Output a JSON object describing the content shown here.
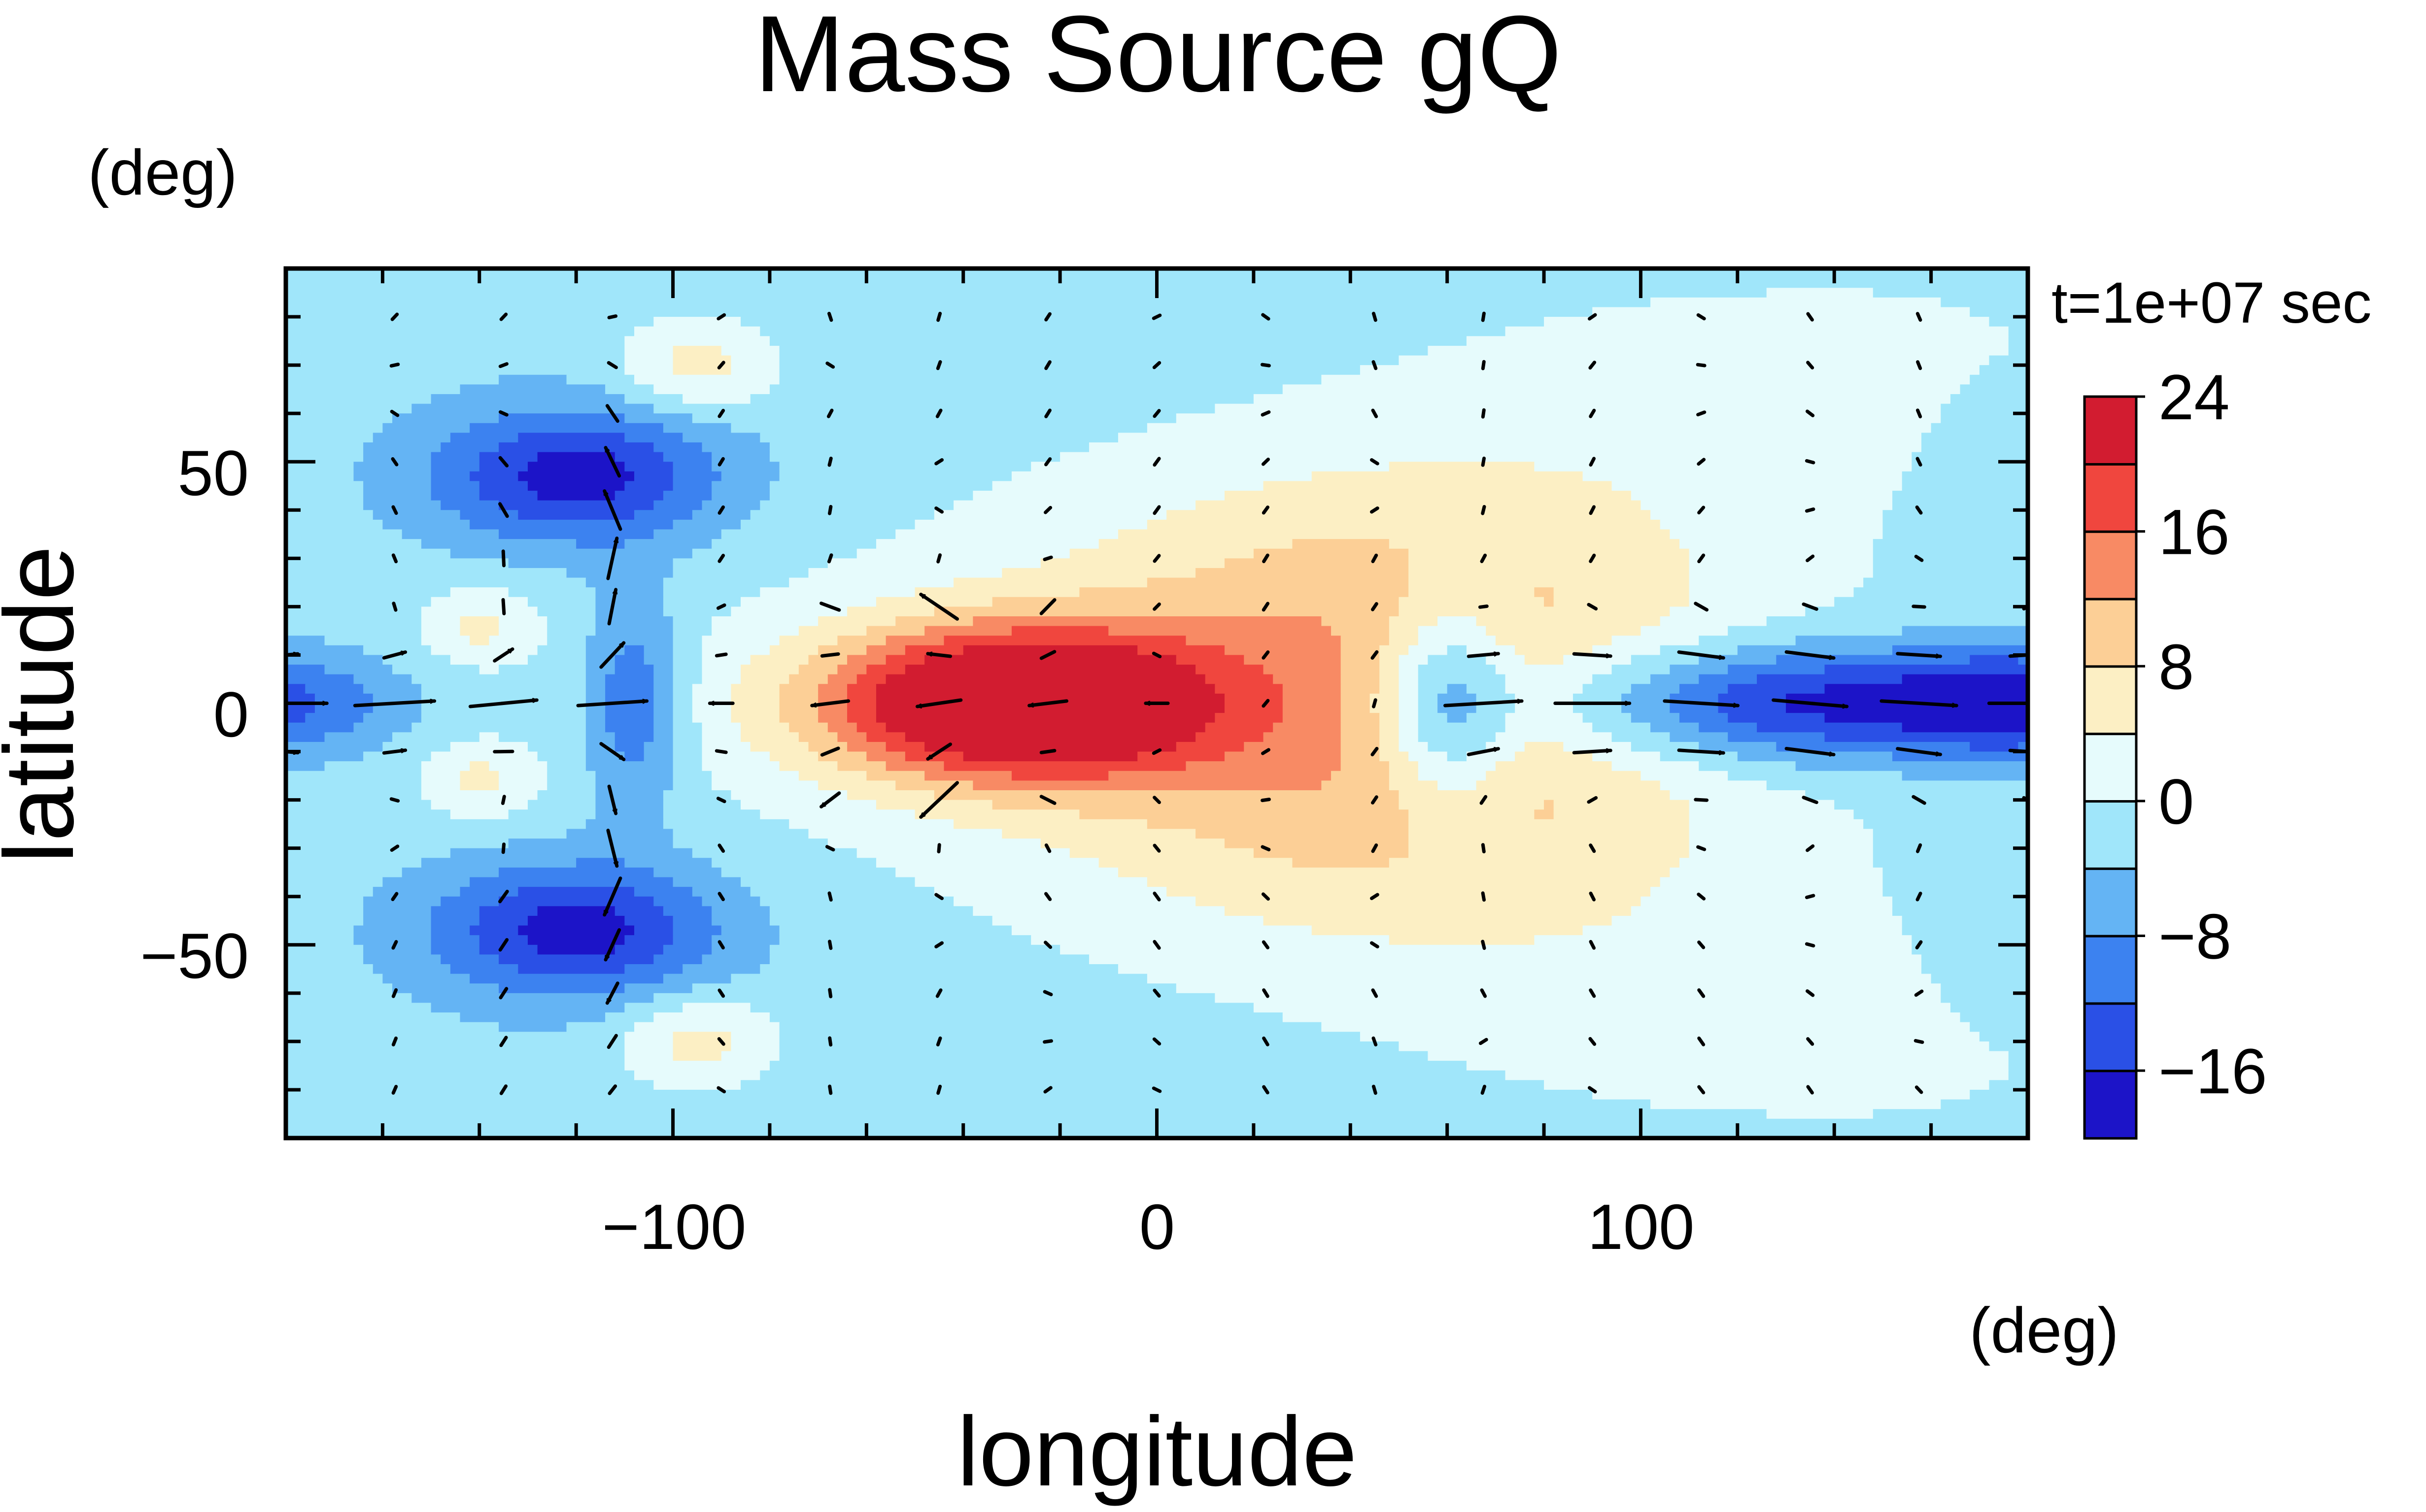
{
  "chart_data": {
    "type": "heatmap",
    "title": "Mass Source gQ",
    "xlabel": "longitude",
    "ylabel": "latitude",
    "x_unit": "(deg)",
    "y_unit": "(deg)",
    "time_label": "t=1e+07 sec",
    "xlim": [
      -180,
      180
    ],
    "ylim": [
      -90,
      90
    ],
    "x_ticks": [
      -100,
      0,
      100
    ],
    "x_tick_labels": [
      "−100",
      "0",
      "100"
    ],
    "y_ticks": [
      50,
      0,
      -50
    ],
    "y_tick_labels": [
      "50",
      "0",
      "−50"
    ],
    "colorbar": {
      "levels": [
        -20,
        -16,
        -12,
        -8,
        -4,
        0,
        4,
        8,
        12,
        16,
        20,
        24
      ],
      "colors": [
        "#1c14c8",
        "#2a50e6",
        "#3c82f0",
        "#64b4f4",
        "#a0e6fa",
        "#e6fbfc",
        "#fcefc4",
        "#fccf96",
        "#f88a64",
        "#f0463e",
        "#d21c30"
      ],
      "tick_values": [
        24,
        16,
        8,
        0,
        -8,
        -16
      ],
      "tick_labels": [
        "24",
        "16",
        "8",
        "0",
        "−8",
        "−16"
      ]
    },
    "features": [
      {
        "name": "equatorial-maximum",
        "lon": -30,
        "lat": 0,
        "value": 22
      },
      {
        "name": "eastern-equatorial-minimum",
        "lon": 135,
        "lat": 0,
        "value": -17
      },
      {
        "name": "northern-minimum",
        "lon": -110,
        "lat": 45,
        "value": -18
      },
      {
        "name": "southern-minimum",
        "lon": -110,
        "lat": -45,
        "value": -18
      },
      {
        "name": "western-equatorial-minimum",
        "lon": -175,
        "lat": 0,
        "value": -10
      }
    ],
    "vector_field": "horizontal wind (arrows)"
  }
}
